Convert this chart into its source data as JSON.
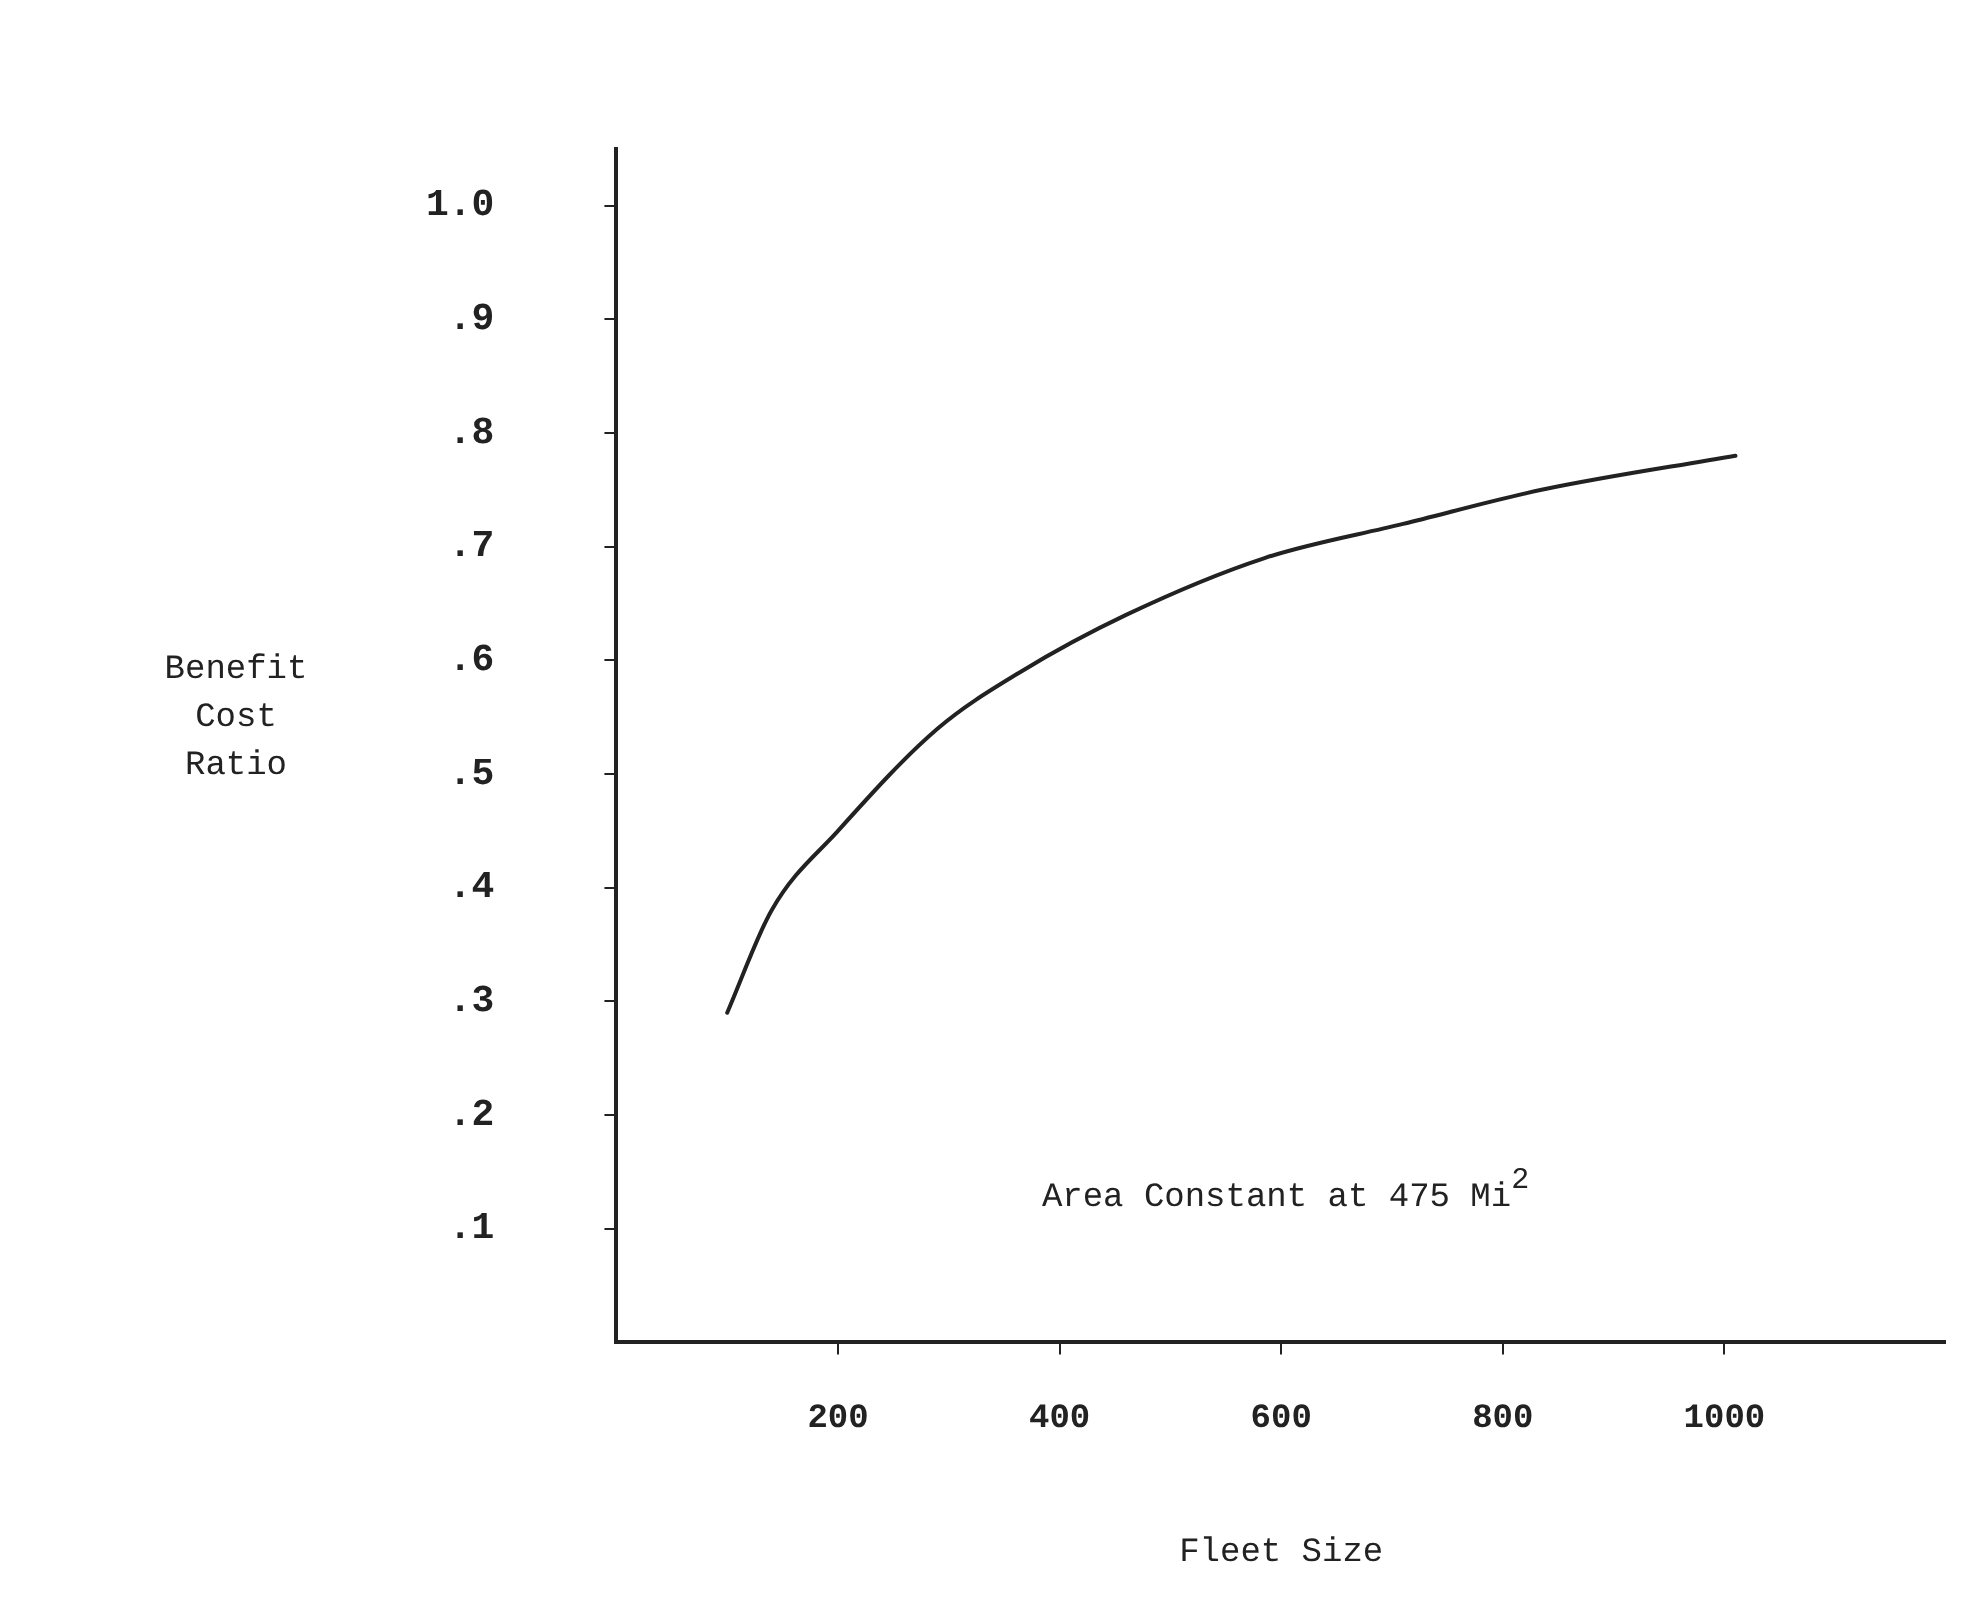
{
  "chart_data": {
    "type": "line",
    "xlabel": "Fleet Size",
    "ylabel": "Benefit Cost Ratio",
    "annotations": [
      "Area Constant at 475 Mi$^{2}$"
    ],
    "x": [
      100,
      140,
      200,
      290,
      365,
      460,
      585,
      710,
      835,
      1010
    ],
    "series": [
      {
        "color": "#222222",
        "values": [
          0.29,
          0.38,
          0.45,
          0.54,
          0.59,
          0.64,
          0.69,
          0.72,
          0.75,
          0.78
        ]
      }
    ],
    "xlim": [
      0,
      1200
    ],
    "xticks": [
      200,
      400,
      600,
      800,
      1000
    ],
    "ylim": [
      0,
      1.05
    ],
    "yticks": [
      {
        "value": 0.1,
        "label": ".1"
      },
      {
        "value": 0.2,
        "label": ".2"
      },
      {
        "value": 0.3,
        "label": ".3"
      },
      {
        "value": 0.4,
        "label": ".4"
      },
      {
        "value": 0.5,
        "label": ".5"
      },
      {
        "value": 0.6,
        "label": ".6"
      },
      {
        "value": 0.7,
        "label": ".7"
      },
      {
        "value": 0.8,
        "label": ".8"
      },
      {
        "value": 0.9,
        "label": ".9"
      },
      {
        "value": 1.0,
        "label": "1.0"
      }
    ],
    "grid": false,
    "legend": false,
    "marker": "none",
    "line_style": "solid"
  }
}
